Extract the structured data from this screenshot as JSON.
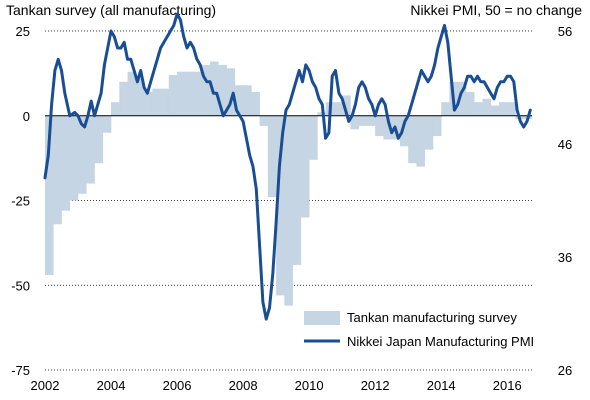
{
  "chart_data": {
    "type": "bar+line",
    "left_axis_title": "Tankan survey (all manufacturing)",
    "right_axis_title": "Nikkei PMI, 50 = no change",
    "x_ticks": [
      "2002",
      "2004",
      "2006",
      "2008",
      "2010",
      "2012",
      "2014",
      "2016"
    ],
    "left_ticks": [
      "25",
      "0",
      "-25",
      "-50",
      "-75"
    ],
    "right_ticks": [
      "56",
      "46",
      "36",
      "26"
    ],
    "left_range": [
      -75,
      25
    ],
    "right_range": [
      26,
      56
    ],
    "x_range": [
      2002.0,
      2016.75
    ],
    "legend_position": "bottom-right",
    "grid": "horizontal dotted",
    "colors": {
      "bars": "#c5d5e3",
      "line": "#1a4e94"
    },
    "series": [
      {
        "name": "Tankan manufacturing survey",
        "axis": "left",
        "kind": "step-bars",
        "x": [
          2002.0,
          2002.25,
          2002.5,
          2002.75,
          2003.0,
          2003.25,
          2003.5,
          2003.75,
          2004.0,
          2004.25,
          2004.5,
          2004.75,
          2005.0,
          2005.25,
          2005.5,
          2005.75,
          2006.0,
          2006.25,
          2006.5,
          2006.75,
          2007.0,
          2007.25,
          2007.5,
          2007.75,
          2008.0,
          2008.25,
          2008.5,
          2008.75,
          2009.0,
          2009.25,
          2009.5,
          2009.75,
          2010.0,
          2010.25,
          2010.5,
          2010.75,
          2011.0,
          2011.25,
          2011.5,
          2011.75,
          2012.0,
          2012.25,
          2012.5,
          2012.75,
          2013.0,
          2013.25,
          2013.5,
          2013.75,
          2014.0,
          2014.25,
          2014.5,
          2014.75,
          2015.0,
          2015.25,
          2015.5,
          2015.75,
          2016.0,
          2016.25,
          2016.5
        ],
        "values": [
          -47,
          -32,
          -28,
          -25,
          -23,
          -20,
          -14,
          -5,
          4,
          10,
          13,
          11,
          7,
          8,
          8,
          12,
          13,
          13,
          13,
          15,
          16,
          15,
          14,
          9,
          9,
          7,
          -3,
          -24,
          -53,
          -56,
          -44,
          -30,
          -13,
          1,
          4,
          4,
          6,
          -4,
          -3,
          -3,
          -6,
          -7,
          -7,
          -9,
          -14,
          -15,
          -10,
          -6,
          4,
          10,
          10,
          7,
          4,
          5,
          3,
          4,
          4,
          -1,
          -1
        ]
      },
      {
        "name": "Nikkei Japan Manufacturing PMI",
        "axis": "right",
        "kind": "line",
        "x": [
          2002.0,
          2002.1,
          2002.2,
          2002.3,
          2002.4,
          2002.5,
          2002.6,
          2002.75,
          2002.9,
          2003.0,
          2003.1,
          2003.2,
          2003.3,
          2003.4,
          2003.5,
          2003.6,
          2003.7,
          2003.8,
          2003.9,
          2004.0,
          2004.1,
          2004.2,
          2004.3,
          2004.4,
          2004.5,
          2004.6,
          2004.7,
          2004.8,
          2004.9,
          2005.0,
          2005.1,
          2005.2,
          2005.3,
          2005.4,
          2005.5,
          2005.6,
          2005.7,
          2005.8,
          2005.9,
          2006.0,
          2006.1,
          2006.2,
          2006.3,
          2006.4,
          2006.5,
          2006.6,
          2006.7,
          2006.8,
          2006.9,
          2007.0,
          2007.1,
          2007.2,
          2007.3,
          2007.4,
          2007.5,
          2007.6,
          2007.7,
          2007.8,
          2007.9,
          2008.0,
          2008.1,
          2008.2,
          2008.3,
          2008.4,
          2008.5,
          2008.6,
          2008.7,
          2008.8,
          2008.9,
          2009.0,
          2009.1,
          2009.2,
          2009.3,
          2009.4,
          2009.5,
          2009.6,
          2009.7,
          2009.8,
          2009.9,
          2010.0,
          2010.1,
          2010.2,
          2010.3,
          2010.4,
          2010.5,
          2010.6,
          2010.7,
          2010.8,
          2010.9,
          2011.0,
          2011.1,
          2011.2,
          2011.3,
          2011.4,
          2011.5,
          2011.6,
          2011.7,
          2011.8,
          2011.9,
          2012.0,
          2012.1,
          2012.2,
          2012.3,
          2012.4,
          2012.5,
          2012.6,
          2012.7,
          2012.8,
          2012.9,
          2013.0,
          2013.1,
          2013.2,
          2013.3,
          2013.4,
          2013.5,
          2013.6,
          2013.7,
          2013.8,
          2013.9,
          2014.0,
          2014.1,
          2014.2,
          2014.3,
          2014.4,
          2014.5,
          2014.6,
          2014.7,
          2014.8,
          2014.9,
          2015.0,
          2015.1,
          2015.2,
          2015.3,
          2015.4,
          2015.5,
          2015.6,
          2015.7,
          2015.8,
          2015.9,
          2016.0,
          2016.1,
          2016.2,
          2016.3,
          2016.4,
          2016.5,
          2016.6,
          2016.7
        ],
        "values": [
          43.0,
          45.0,
          49.5,
          52.5,
          53.5,
          52.5,
          50.5,
          48.5,
          48.8,
          48.5,
          47.8,
          47.5,
          48.5,
          49.8,
          48.5,
          49.5,
          50.5,
          53.0,
          54.5,
          56.0,
          55.5,
          54.5,
          54.5,
          55.0,
          53.5,
          53.5,
          52.5,
          51.5,
          52.5,
          51.0,
          50.5,
          51.5,
          52.5,
          53.5,
          54.5,
          55.0,
          55.5,
          56.0,
          56.5,
          57.5,
          57.0,
          55.5,
          54.5,
          55.0,
          54.5,
          53.5,
          53.0,
          52.0,
          51.5,
          51.5,
          50.5,
          50.5,
          49.5,
          48.5,
          49.0,
          49.5,
          50.5,
          49.0,
          48.5,
          48.0,
          46.5,
          45.0,
          44.0,
          42.0,
          37.0,
          32.0,
          30.5,
          31.5,
          34.5,
          39.0,
          44.0,
          47.0,
          49.0,
          49.5,
          50.5,
          51.5,
          52.5,
          51.5,
          53.0,
          52.5,
          51.5,
          51.0,
          50.0,
          49.5,
          46.5,
          47.0,
          52.0,
          52.5,
          50.5,
          50.0,
          49.0,
          48.0,
          48.5,
          49.5,
          51.0,
          51.5,
          51.0,
          50.0,
          49.5,
          48.5,
          49.5,
          50.0,
          49.5,
          48.0,
          47.0,
          47.5,
          46.5,
          47.0,
          48.0,
          48.5,
          49.5,
          50.5,
          51.5,
          52.5,
          52.0,
          51.5,
          52.0,
          53.0,
          54.5,
          55.5,
          56.5,
          55.0,
          52.0,
          49.0,
          49.5,
          50.5,
          51.0,
          52.0,
          52.0,
          51.5,
          52.0,
          51.5,
          51.5,
          51.0,
          50.5,
          50.0,
          51.0,
          51.5,
          51.5,
          52.0,
          52.0,
          51.5,
          49.0,
          48.0,
          47.5,
          48.0,
          49.0
        ]
      }
    ]
  }
}
